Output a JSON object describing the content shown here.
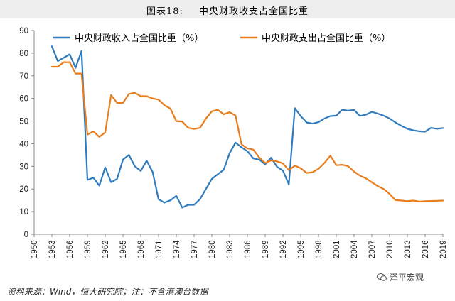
{
  "header": {
    "figure_label": "图表18:",
    "title": "中央财政收支占全国比重"
  },
  "footer": {
    "source": "资料来源：Wind，恒大研究院；注：不含港澳台数据",
    "watermark": "泽平宏观"
  },
  "chart_data": {
    "type": "line",
    "xlim": [
      1950,
      2019
    ],
    "ylim": [
      0,
      90
    ],
    "y_ticks": [
      0,
      10,
      20,
      30,
      40,
      50,
      60,
      70,
      80,
      90
    ],
    "x_ticks": [
      "1950",
      "1953",
      "1956",
      "1959",
      "1962",
      "1965",
      "1968",
      "1971",
      "1974",
      "1977",
      "1980",
      "1983",
      "1986",
      "1989",
      "1992",
      "1995",
      "1998",
      "2001",
      "2004",
      "2007",
      "2010",
      "2013",
      "2016",
      "2019"
    ],
    "grid": false,
    "legend_position": "top",
    "series": [
      {
        "name": "中央财政收入占全国比重（%）",
        "color": "#2f7bbd",
        "x": [
          1953,
          1954,
          1955,
          1956,
          1957,
          1958,
          1959,
          1960,
          1961,
          1962,
          1963,
          1964,
          1965,
          1966,
          1967,
          1968,
          1969,
          1970,
          1971,
          1972,
          1973,
          1974,
          1975,
          1976,
          1977,
          1978,
          1979,
          1980,
          1981,
          1982,
          1983,
          1984,
          1985,
          1986,
          1987,
          1988,
          1989,
          1990,
          1991,
          1992,
          1993,
          1994,
          1995,
          1996,
          1997,
          1998,
          1999,
          2000,
          2001,
          2002,
          2003,
          2004,
          2005,
          2006,
          2007,
          2008,
          2009,
          2010,
          2011,
          2012,
          2013,
          2014,
          2015,
          2016,
          2017,
          2018,
          2019
        ],
        "values": [
          83.0,
          76.5,
          78.0,
          79.5,
          73.5,
          81.0,
          24.0,
          25.0,
          21.5,
          29.5,
          23.0,
          24.5,
          33.0,
          35.0,
          30.0,
          28.0,
          32.5,
          27.5,
          15.5,
          14.0,
          15.0,
          17.0,
          11.8,
          13.0,
          13.0,
          15.5,
          20.0,
          24.5,
          26.5,
          28.5,
          35.8,
          40.5,
          38.4,
          36.7,
          33.5,
          33.0,
          30.9,
          33.8,
          29.8,
          28.1,
          22.0,
          55.7,
          52.2,
          49.4,
          48.9,
          49.5,
          51.1,
          52.2,
          52.4,
          55.0,
          54.6,
          54.9,
          52.3,
          52.8,
          54.1,
          53.3,
          52.4,
          51.1,
          49.4,
          47.9,
          46.6,
          45.9,
          45.5,
          45.3,
          47.0,
          46.6,
          46.9
        ]
      },
      {
        "name": "中央财政支出占全国比重（%）",
        "color": "#e97c1b",
        "x": [
          1953,
          1954,
          1955,
          1956,
          1957,
          1958,
          1959,
          1960,
          1961,
          1962,
          1963,
          1964,
          1965,
          1966,
          1967,
          1968,
          1969,
          1970,
          1971,
          1972,
          1973,
          1974,
          1975,
          1976,
          1977,
          1978,
          1979,
          1980,
          1981,
          1982,
          1983,
          1984,
          1985,
          1986,
          1987,
          1988,
          1989,
          1990,
          1991,
          1992,
          1993,
          1994,
          1995,
          1996,
          1997,
          1998,
          1999,
          2000,
          2001,
          2002,
          2003,
          2004,
          2005,
          2006,
          2007,
          2008,
          2009,
          2010,
          2011,
          2012,
          2013,
          2014,
          2015,
          2016,
          2017,
          2018,
          2019
        ],
        "values": [
          74.0,
          74.0,
          76.0,
          76.0,
          71.0,
          71.0,
          44.0,
          45.5,
          43.0,
          45.0,
          61.5,
          58.0,
          58.0,
          62.0,
          62.5,
          61.0,
          61.0,
          60.0,
          59.5,
          57.0,
          55.5,
          50.0,
          49.8,
          47.0,
          46.5,
          47.0,
          51.1,
          54.3,
          55.0,
          53.0,
          53.9,
          52.5,
          39.7,
          37.9,
          37.4,
          33.9,
          31.5,
          32.6,
          32.2,
          31.3,
          28.3,
          30.3,
          29.2,
          27.1,
          27.4,
          28.9,
          31.5,
          34.7,
          30.5,
          30.7,
          30.1,
          27.7,
          25.9,
          24.7,
          23.0,
          21.3,
          20.0,
          17.8,
          15.1,
          14.9,
          14.6,
          14.9,
          14.5,
          14.6,
          14.7,
          14.8,
          14.9
        ]
      }
    ]
  }
}
